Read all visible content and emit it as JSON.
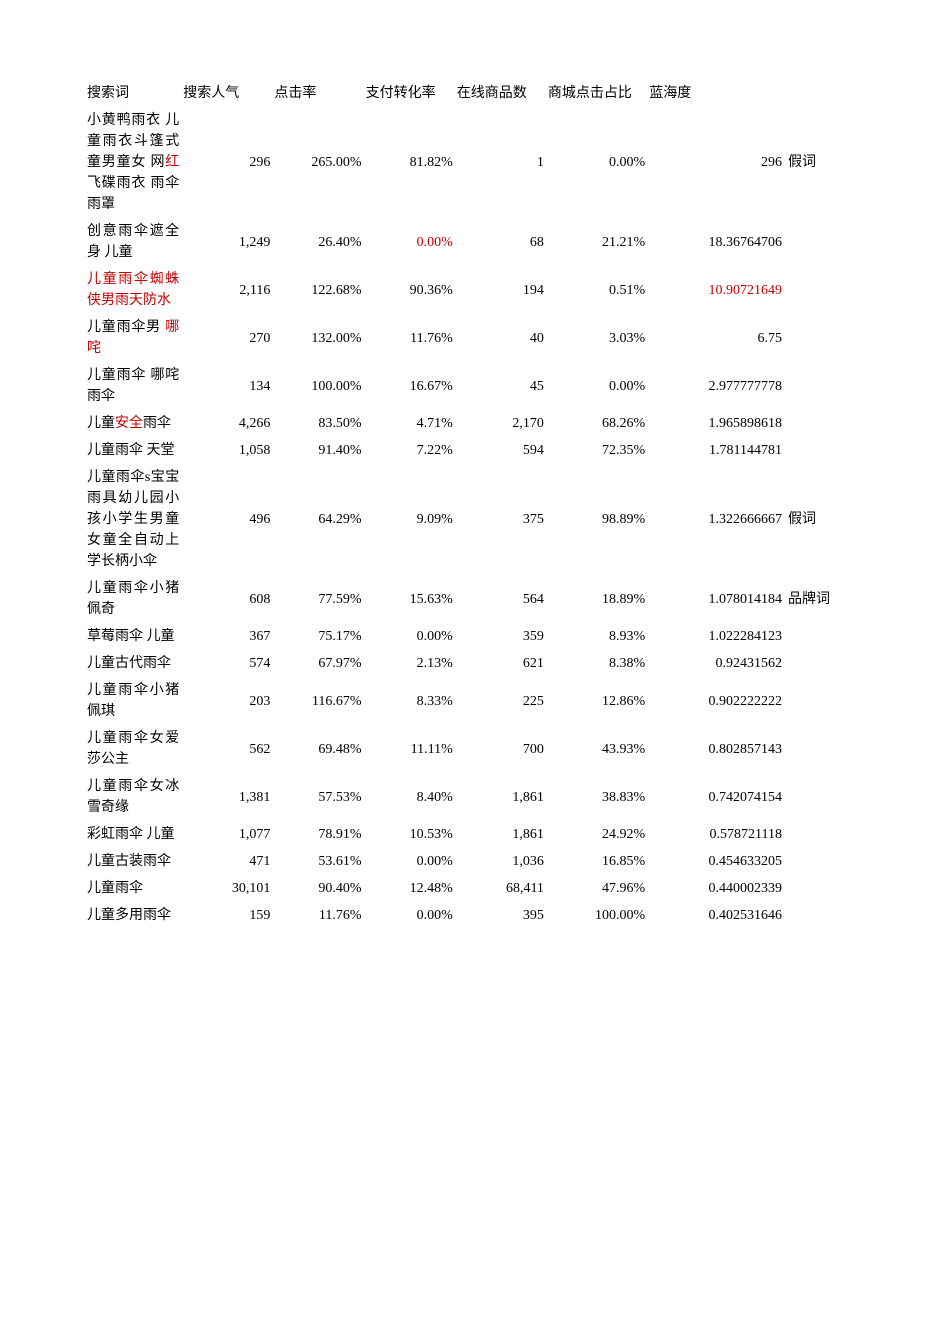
{
  "columns": {
    "keyword": "搜索词",
    "popularity": "搜索人气",
    "ctr": "点击率",
    "conversion": "支付转化率",
    "items": "在线商品数",
    "mallctr": "商城点击占比",
    "blue": "蓝海度",
    "tag": ""
  },
  "colors": {
    "text": "#000000",
    "red": "#c00000",
    "background": "#ffffff"
  },
  "font": {
    "family": "SimSun",
    "size_pt": 10.5
  },
  "column_align": {
    "keyword": "left",
    "popularity": "right",
    "ctr": "right",
    "conversion": "right",
    "items": "right",
    "mallctr": "right",
    "blue": "right",
    "tag": "left"
  },
  "rows": [
    {
      "keyword_parts": [
        {
          "text": "小黄鸭雨衣 儿童雨衣斗篷式 童男童女 网",
          "red": false
        },
        {
          "text": "红",
          "red": true
        },
        {
          "text": "飞碟雨衣 雨伞 雨罩",
          "red": false
        }
      ],
      "popularity": "296",
      "ctr": "265.00%",
      "conversion": "81.82%",
      "conversion_red": false,
      "items": "1",
      "mallctr": "0.00%",
      "blue": "296",
      "blue_red": false,
      "tag": "假词"
    },
    {
      "keyword_parts": [
        {
          "text": "创意雨伞遮全身 儿童",
          "red": false
        }
      ],
      "popularity": "1,249",
      "ctr": "26.40%",
      "conversion": "0.00%",
      "conversion_red": true,
      "items": "68",
      "mallctr": "21.21%",
      "blue": "18.36764706",
      "blue_red": false,
      "tag": ""
    },
    {
      "keyword_parts": [
        {
          "text": "儿童雨伞蜘蛛侠男雨天防水",
          "red": true
        }
      ],
      "popularity": "2,116",
      "ctr": "122.68%",
      "conversion": "90.36%",
      "conversion_red": false,
      "items": "194",
      "mallctr": "0.51%",
      "blue": "10.90721649",
      "blue_red": true,
      "tag": ""
    },
    {
      "keyword_parts": [
        {
          "text": "儿童雨伞男 ",
          "red": false
        },
        {
          "text": "哪咤",
          "red": true
        }
      ],
      "popularity": "270",
      "ctr": "132.00%",
      "conversion": "11.76%",
      "conversion_red": false,
      "items": "40",
      "mallctr": "3.03%",
      "blue": "6.75",
      "blue_red": false,
      "tag": ""
    },
    {
      "keyword_parts": [
        {
          "text": "儿童雨伞 哪咤雨伞",
          "red": false
        }
      ],
      "popularity": "134",
      "ctr": "100.00%",
      "conversion": "16.67%",
      "conversion_red": false,
      "items": "45",
      "mallctr": "0.00%",
      "blue": "2.977777778",
      "blue_red": false,
      "tag": ""
    },
    {
      "keyword_parts": [
        {
          "text": "儿童",
          "red": false
        },
        {
          "text": "安全",
          "red": true
        },
        {
          "text": "雨伞",
          "red": false
        }
      ],
      "popularity": "4,266",
      "ctr": "83.50%",
      "conversion": "4.71%",
      "conversion_red": false,
      "items": "2,170",
      "mallctr": "68.26%",
      "blue": "1.965898618",
      "blue_red": false,
      "tag": ""
    },
    {
      "keyword_parts": [
        {
          "text": "儿童雨伞 天堂",
          "red": false
        }
      ],
      "popularity": "1,058",
      "ctr": "91.40%",
      "conversion": "7.22%",
      "conversion_red": false,
      "items": "594",
      "mallctr": "72.35%",
      "blue": "1.781144781",
      "blue_red": false,
      "tag": ""
    },
    {
      "keyword_parts": [
        {
          "text": "儿童雨伞s宝宝雨具幼儿园小孩小学生男童女童全自动上学长柄小伞",
          "red": false
        }
      ],
      "popularity": "496",
      "ctr": "64.29%",
      "conversion": "9.09%",
      "conversion_red": false,
      "items": "375",
      "mallctr": "98.89%",
      "blue": "1.322666667",
      "blue_red": false,
      "tag": "假词"
    },
    {
      "keyword_parts": [
        {
          "text": "儿童雨伞小猪佩奇",
          "red": false
        }
      ],
      "popularity": "608",
      "ctr": "77.59%",
      "conversion": "15.63%",
      "conversion_red": false,
      "items": "564",
      "mallctr": "18.89%",
      "blue": "1.078014184",
      "blue_red": false,
      "tag": "品牌词"
    },
    {
      "keyword_parts": [
        {
          "text": "草莓雨伞 儿童",
          "red": false
        }
      ],
      "popularity": "367",
      "ctr": "75.17%",
      "conversion": "0.00%",
      "conversion_red": false,
      "items": "359",
      "mallctr": "8.93%",
      "blue": "1.022284123",
      "blue_red": false,
      "tag": ""
    },
    {
      "keyword_parts": [
        {
          "text": "儿童古代雨伞",
          "red": false
        }
      ],
      "popularity": "574",
      "ctr": "67.97%",
      "conversion": "2.13%",
      "conversion_red": false,
      "items": "621",
      "mallctr": "8.38%",
      "blue": "0.92431562",
      "blue_red": false,
      "tag": ""
    },
    {
      "keyword_parts": [
        {
          "text": "儿童雨伞小猪佩琪",
          "red": false
        }
      ],
      "popularity": "203",
      "ctr": "116.67%",
      "conversion": "8.33%",
      "conversion_red": false,
      "items": "225",
      "mallctr": "12.86%",
      "blue": "0.902222222",
      "blue_red": false,
      "tag": ""
    },
    {
      "keyword_parts": [
        {
          "text": "儿童雨伞女爱莎公主",
          "red": false
        }
      ],
      "popularity": "562",
      "ctr": "69.48%",
      "conversion": "11.11%",
      "conversion_red": false,
      "items": "700",
      "mallctr": "43.93%",
      "blue": "0.802857143",
      "blue_red": false,
      "tag": ""
    },
    {
      "keyword_parts": [
        {
          "text": "儿童雨伞女冰雪奇缘",
          "red": false
        }
      ],
      "popularity": "1,381",
      "ctr": "57.53%",
      "conversion": "8.40%",
      "conversion_red": false,
      "items": "1,861",
      "mallctr": "38.83%",
      "blue": "0.742074154",
      "blue_red": false,
      "tag": ""
    },
    {
      "keyword_parts": [
        {
          "text": "彩虹雨伞 儿童",
          "red": false
        }
      ],
      "popularity": "1,077",
      "ctr": "78.91%",
      "conversion": "10.53%",
      "conversion_red": false,
      "items": "1,861",
      "mallctr": "24.92%",
      "blue": "0.578721118",
      "blue_red": false,
      "tag": ""
    },
    {
      "keyword_parts": [
        {
          "text": "儿童古装雨伞",
          "red": false
        }
      ],
      "popularity": "471",
      "ctr": "53.61%",
      "conversion": "0.00%",
      "conversion_red": false,
      "items": "1,036",
      "mallctr": "16.85%",
      "blue": "0.454633205",
      "blue_red": false,
      "tag": ""
    },
    {
      "keyword_parts": [
        {
          "text": "儿童雨伞",
          "red": false
        }
      ],
      "popularity": "30,101",
      "ctr": "90.40%",
      "conversion": "12.48%",
      "conversion_red": false,
      "items": "68,411",
      "mallctr": "47.96%",
      "blue": "0.440002339",
      "blue_red": false,
      "tag": ""
    },
    {
      "keyword_parts": [
        {
          "text": "儿童多用雨伞",
          "red": false
        }
      ],
      "popularity": "159",
      "ctr": "11.76%",
      "conversion": "0.00%",
      "conversion_red": false,
      "items": "395",
      "mallctr": "100.00%",
      "blue": "0.402531646",
      "blue_red": false,
      "tag": ""
    }
  ]
}
